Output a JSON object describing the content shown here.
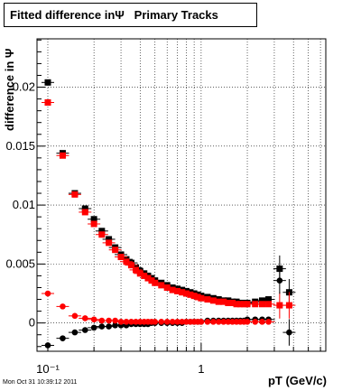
{
  "title": "Fitted difference inΨ   Primary Tracks",
  "timestamp": "Mon Oct 31 10:39:12 2011",
  "chart_data": {
    "type": "scatter",
    "title": "Fitted difference inΨ   Primary Tracks",
    "xlabel": "pT (GeV/c)",
    "ylabel": "difference in Ψ",
    "xscale": "log",
    "xlim": [
      0.085,
      6.5
    ],
    "ylim": [
      -0.0024,
      0.0241
    ],
    "grid": true,
    "x_tick_labels": [
      "10⁻¹",
      "1"
    ],
    "y_tick_labels": [
      "0",
      "0.005",
      "0.01",
      "0.015",
      "0.02"
    ],
    "series": [
      {
        "marker": "square",
        "color": "#000000",
        "x": [
          0.1,
          0.125,
          0.15,
          0.175,
          0.2,
          0.225,
          0.25,
          0.275,
          0.3,
          0.325,
          0.35,
          0.375,
          0.4,
          0.425,
          0.45,
          0.475,
          0.5,
          0.55,
          0.6,
          0.65,
          0.7,
          0.75,
          0.8,
          0.85,
          0.9,
          0.95,
          1.0,
          1.1,
          1.2,
          1.3,
          1.4,
          1.5,
          1.6,
          1.7,
          1.8,
          1.9,
          2.0,
          2.25,
          2.5,
          2.75,
          3.25,
          3.75
        ],
        "y": [
          0.0204,
          0.0144,
          0.011,
          0.0097,
          0.0088,
          0.0078,
          0.0071,
          0.0064,
          0.0058,
          0.0054,
          0.0051,
          0.0047,
          0.0044,
          0.0042,
          0.004,
          0.0038,
          0.0036,
          0.0034,
          0.0032,
          0.003,
          0.0029,
          0.0028,
          0.0027,
          0.0026,
          0.0025,
          0.0024,
          0.0023,
          0.0022,
          0.0021,
          0.002,
          0.0019,
          0.0019,
          0.0018,
          0.0018,
          0.0017,
          0.0017,
          0.0017,
          0.0018,
          0.0019,
          0.002,
          0.0046,
          0.0026
        ]
      },
      {
        "marker": "square",
        "color": "#ff0000",
        "x": [
          0.1,
          0.125,
          0.15,
          0.175,
          0.2,
          0.225,
          0.25,
          0.275,
          0.3,
          0.325,
          0.35,
          0.375,
          0.4,
          0.425,
          0.45,
          0.475,
          0.5,
          0.55,
          0.6,
          0.65,
          0.7,
          0.75,
          0.8,
          0.85,
          0.9,
          0.95,
          1.0,
          1.1,
          1.2,
          1.3,
          1.4,
          1.5,
          1.6,
          1.7,
          1.8,
          1.9,
          2.0,
          2.25,
          2.5,
          2.75,
          3.25,
          3.75
        ],
        "y": [
          0.0187,
          0.0142,
          0.0109,
          0.0094,
          0.0084,
          0.0075,
          0.0068,
          0.0062,
          0.0056,
          0.0052,
          0.0049,
          0.0045,
          0.0042,
          0.004,
          0.0038,
          0.0036,
          0.0034,
          0.0032,
          0.003,
          0.0028,
          0.0027,
          0.0026,
          0.0025,
          0.0024,
          0.0023,
          0.0022,
          0.0021,
          0.002,
          0.0019,
          0.0018,
          0.0018,
          0.0017,
          0.0017,
          0.0016,
          0.0016,
          0.0016,
          0.0016,
          0.0016,
          0.0016,
          0.0016,
          0.0015,
          0.0015
        ]
      },
      {
        "marker": "circle",
        "color": "#000000",
        "x": [
          0.1,
          0.125,
          0.15,
          0.175,
          0.2,
          0.225,
          0.25,
          0.275,
          0.3,
          0.325,
          0.35,
          0.375,
          0.4,
          0.425,
          0.45,
          0.475,
          0.5,
          0.55,
          0.6,
          0.65,
          0.7,
          0.75,
          0.8,
          0.85,
          0.9,
          0.95,
          1.0,
          1.1,
          1.2,
          1.3,
          1.4,
          1.5,
          1.6,
          1.7,
          1.8,
          1.9,
          2.0,
          2.25,
          2.5,
          2.75,
          3.25,
          3.75
        ],
        "y": [
          -0.0019,
          -0.0013,
          -0.0008,
          -0.0006,
          -0.0004,
          -0.0003,
          -0.0003,
          -0.0002,
          -0.0002,
          -0.0002,
          -0.0001,
          -0.0001,
          -0.0001,
          -0.0001,
          -0.0001,
          0.0,
          0.0,
          0.0,
          0.0,
          0.0,
          0.0,
          0.0,
          0.0001,
          0.0001,
          0.0001,
          0.0001,
          0.0001,
          0.0002,
          0.0002,
          0.0002,
          0.0002,
          0.0002,
          0.0002,
          0.0002,
          0.0002,
          0.0002,
          0.0003,
          0.0003,
          0.0003,
          0.0003,
          0.0036,
          -0.0008
        ]
      },
      {
        "marker": "circle",
        "color": "#ff0000",
        "x": [
          0.1,
          0.125,
          0.15,
          0.175,
          0.2,
          0.225,
          0.25,
          0.275,
          0.3,
          0.325,
          0.35,
          0.375,
          0.4,
          0.425,
          0.45,
          0.475,
          0.5,
          0.55,
          0.6,
          0.65,
          0.7,
          0.75,
          0.8,
          0.85,
          0.9,
          0.95,
          1.0,
          1.1,
          1.2,
          1.3,
          1.4,
          1.5,
          1.6,
          1.7,
          1.8,
          1.9,
          2.0,
          2.25,
          2.5,
          2.75
        ],
        "y": [
          0.0025,
          0.0014,
          0.0006,
          0.0004,
          0.0003,
          0.0002,
          0.0002,
          0.0002,
          0.0001,
          0.0001,
          0.0001,
          0.0001,
          0.0001,
          0.0001,
          0.0001,
          0.0001,
          0.0001,
          0.0001,
          0.0001,
          0.0001,
          0.0001,
          0.0001,
          0.0001,
          0.0001,
          0.0001,
          0.0001,
          0.0001,
          0.0001,
          0.0001,
          0.0001,
          0.0001,
          0.0001,
          0.0001,
          0.0001,
          0.0001,
          0.0001,
          0.0001,
          0.0001,
          0.0001,
          0.0001
        ]
      }
    ]
  }
}
